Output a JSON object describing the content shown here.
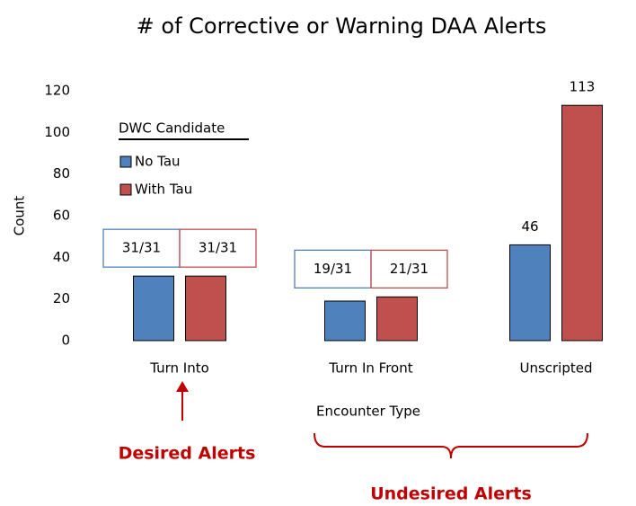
{
  "chart_data": {
    "type": "bar",
    "title": "# of Corrective or Warning DAA Alerts",
    "x_label": "Encounter Type",
    "y_label": "Count",
    "categories": [
      "Turn Into",
      "Turn In Front",
      "Unscripted"
    ],
    "series": [
      {
        "name": "No Tau",
        "color": "#4f81bd",
        "values": [
          31,
          19,
          46
        ],
        "value_labels": [
          "31/31",
          "19/31",
          "46"
        ]
      },
      {
        "name": "With Tau",
        "color": "#c0504d",
        "values": [
          31,
          21,
          113
        ],
        "value_labels": [
          "31/31",
          "21/31",
          "113"
        ]
      }
    ],
    "ylim": [
      0,
      120
    ],
    "yticks": [
      0,
      20,
      40,
      60,
      80,
      100,
      120
    ],
    "grid": false,
    "legend": {
      "title": "DWC Candidate",
      "position": "upper left"
    },
    "annotations": [
      "Desired Alerts",
      "Undesired Alerts"
    ]
  }
}
